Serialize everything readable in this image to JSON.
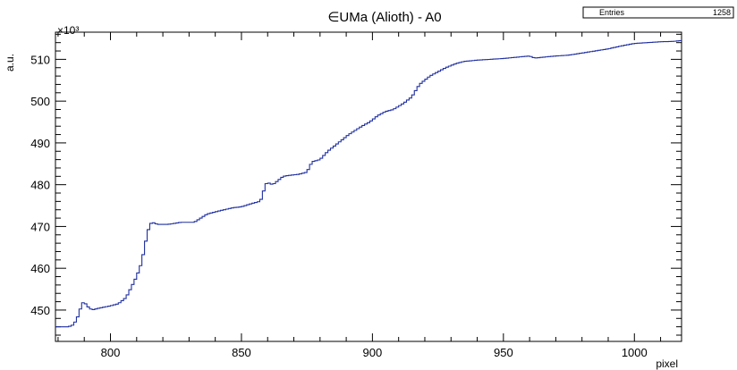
{
  "chart_data": {
    "type": "line",
    "title": "∈UMa (Alioth) - A0",
    "xlabel": "pixel",
    "ylabel": "a.u.",
    "y_exponent_label": "×10³",
    "xlim": [
      779,
      1018
    ],
    "ylim": [
      442.5,
      516.5
    ],
    "x_ticks": [
      800,
      850,
      900,
      950,
      1000
    ],
    "y_ticks": [
      450,
      460,
      470,
      480,
      490,
      500,
      510
    ],
    "line_color": "#1f2fa0",
    "stats_box": {
      "label": "Entries",
      "value": "1258"
    },
    "series": [
      {
        "x": [
          779,
          784,
          786,
          788,
          789,
          790,
          791,
          793,
          794,
          796,
          800,
          803,
          806,
          808,
          810,
          812,
          813,
          814,
          815,
          816,
          818,
          822,
          827,
          832,
          837,
          842,
          847,
          850,
          854,
          857,
          858,
          859,
          860,
          862,
          864,
          866,
          868,
          872,
          875,
          877,
          880,
          883,
          886,
          889,
          891,
          893,
          896,
          899,
          902,
          905,
          908,
          912,
          915,
          918,
          922,
          925,
          928,
          932,
          935,
          940,
          945,
          950,
          955,
          960,
          962,
          965,
          970,
          975,
          980,
          985,
          990,
          995,
          1000,
          1005,
          1010,
          1015,
          1018
        ],
        "y": [
          446,
          446,
          446.5,
          449,
          451.5,
          452,
          451,
          450,
          450.2,
          450.5,
          451,
          451.5,
          453,
          455.5,
          458,
          461.5,
          465,
          468,
          470.5,
          471,
          470.5,
          470.5,
          471,
          471,
          473,
          473.8,
          474.5,
          474.7,
          475.5,
          476,
          477,
          480,
          480.5,
          480,
          481,
          482,
          482.2,
          482.5,
          483,
          485.5,
          486,
          488,
          489.5,
          491,
          492,
          492.8,
          494,
          495,
          496.5,
          497.5,
          498,
          499.5,
          501,
          504,
          506,
          507,
          508,
          509,
          509.5,
          509.8,
          510,
          510.2,
          510.5,
          510.8,
          510.3,
          510.5,
          510.8,
          511,
          511.5,
          512,
          512.5,
          513.2,
          513.8,
          514,
          514.2,
          514.3,
          514.5
        ]
      }
    ]
  }
}
